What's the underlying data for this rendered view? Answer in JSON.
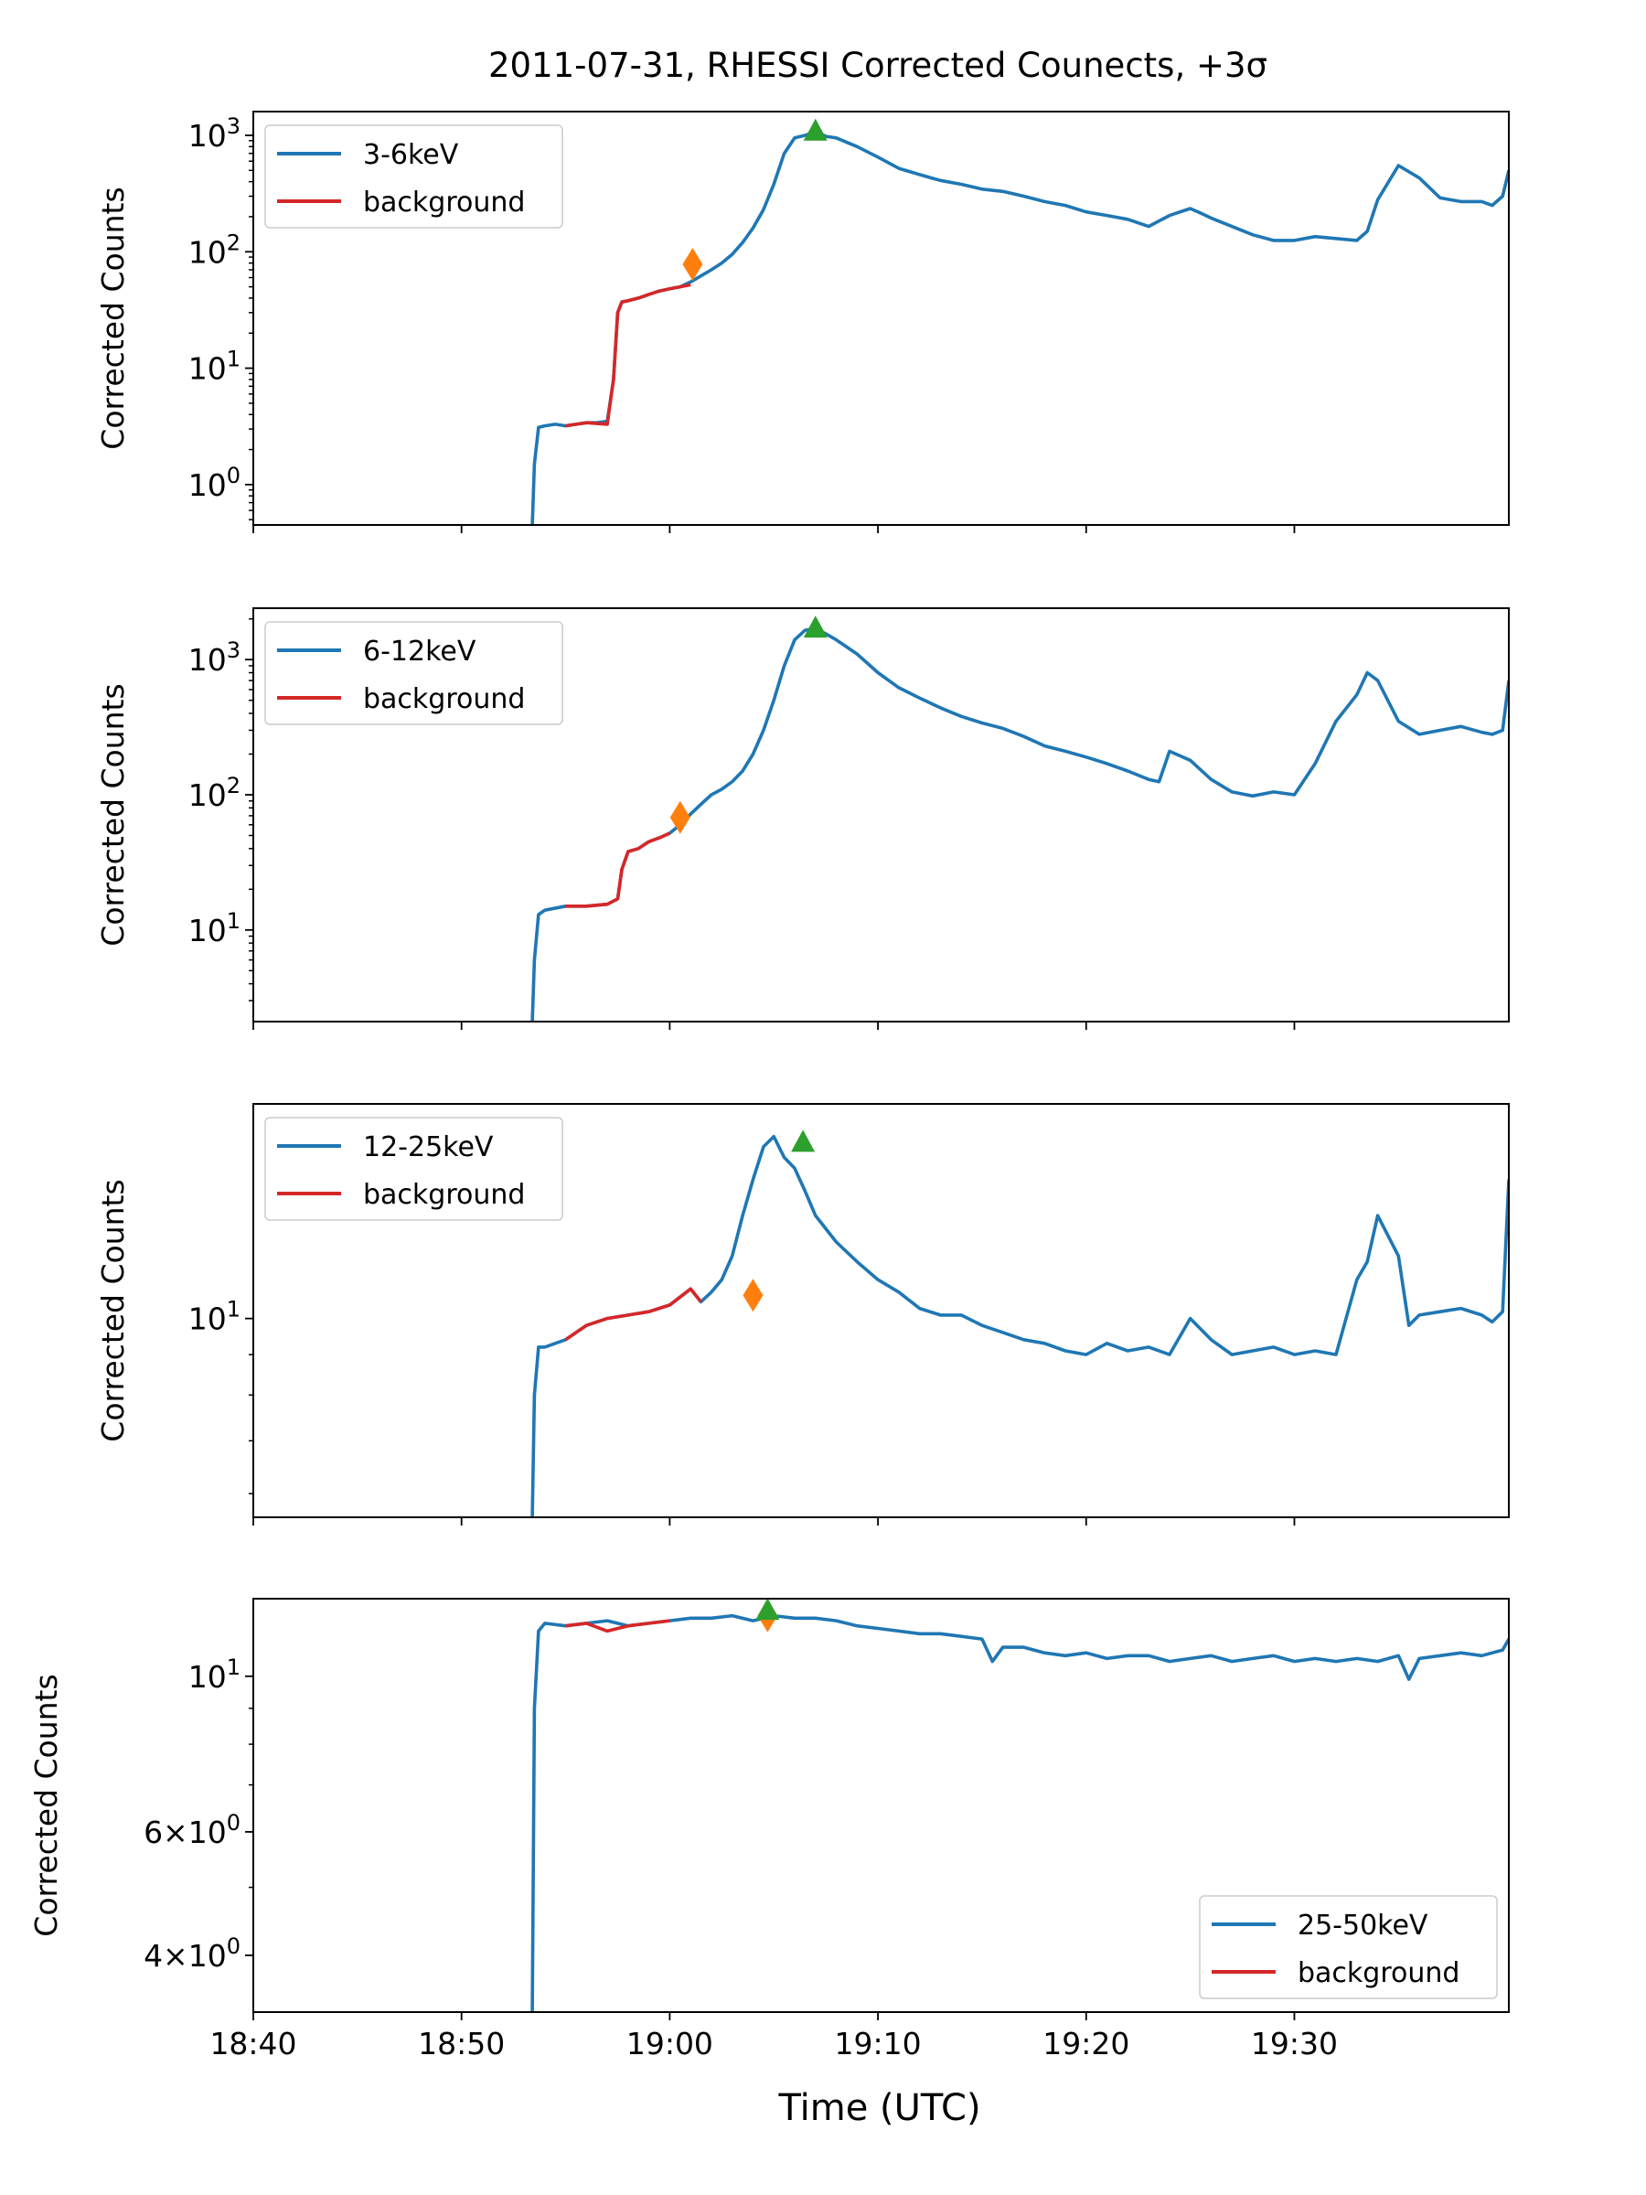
{
  "figure": {
    "title": "2011-07-31, RHESSI Corrected Counects, +3σ",
    "xlabel": "Time (UTC)",
    "xticks": [
      "18:40",
      "18:50",
      "19:00",
      "19:10",
      "19:20",
      "19:30"
    ]
  },
  "colors": {
    "signal": "#1f77b4",
    "background": "#d62728",
    "start_marker": "#ff7f0e",
    "peak_marker": "#2ca02c"
  },
  "chart_data": [
    {
      "type": "line",
      "yscale": "log",
      "ylabel": "Corrected Counts",
      "xlim": [
        0,
        60.3
      ],
      "ylim": [
        0.45,
        1600
      ],
      "yticks": [
        {
          "v": 1,
          "label": "10^0"
        },
        {
          "v": 10,
          "label": "10^1"
        },
        {
          "v": 100,
          "label": "10^2"
        },
        {
          "v": 1000,
          "label": "10^3"
        }
      ],
      "legend": {
        "position": "upper-left",
        "entries": [
          "3-6keV",
          "background"
        ]
      },
      "series": [
        {
          "name": "3-6keV",
          "x": [
            13.4,
            13.5,
            13.7,
            14,
            14.5,
            15,
            16,
            16.5,
            17,
            17.3,
            17.5,
            17.7,
            18,
            18.5,
            19,
            19.5,
            20,
            20.5,
            21,
            21.5,
            22,
            22.5,
            23,
            23.5,
            24,
            24.5,
            25,
            25.5,
            26,
            26.5,
            27,
            27.5,
            28,
            29,
            30,
            31,
            32,
            33,
            34,
            35,
            36,
            37,
            38,
            39,
            40,
            41,
            42,
            43,
            44,
            45,
            45.5,
            46,
            47,
            48,
            49,
            50,
            51,
            52,
            53,
            53.5,
            54,
            55,
            56,
            57,
            58,
            59,
            59.5,
            60,
            60.3
          ],
          "y": [
            0.45,
            1.5,
            3.1,
            3.2,
            3.3,
            3.2,
            3.4,
            3.4,
            3.5,
            8,
            30,
            37,
            38,
            40,
            43,
            46,
            48,
            50,
            55,
            62,
            70,
            80,
            95,
            120,
            160,
            230,
            380,
            700,
            950,
            1000,
            1080,
            980,
            950,
            800,
            650,
            520,
            460,
            410,
            380,
            345,
            330,
            300,
            270,
            250,
            220,
            205,
            190,
            165,
            205,
            235,
            215,
            195,
            165,
            140,
            125,
            125,
            135,
            130,
            125,
            150,
            280,
            550,
            430,
            290,
            270,
            270,
            250,
            300,
            500
          ]
        },
        {
          "name": "background",
          "x": [
            15,
            16,
            17,
            17.3,
            17.5,
            17.7,
            18,
            18.5,
            19,
            19.5,
            20,
            20.5,
            21
          ],
          "y": [
            3.2,
            3.4,
            3.3,
            8,
            30,
            37,
            38,
            40,
            43,
            46,
            48,
            50,
            52
          ]
        }
      ],
      "markers": [
        {
          "kind": "start",
          "x": 21.1,
          "y": 78
        },
        {
          "kind": "peak",
          "x": 27.0,
          "y": 1080
        }
      ]
    },
    {
      "type": "line",
      "yscale": "log",
      "ylabel": "Corrected Counts",
      "xlim": [
        0,
        60.3
      ],
      "ylim": [
        2.1,
        2400
      ],
      "yticks": [
        {
          "v": 10,
          "label": "10^1"
        },
        {
          "v": 100,
          "label": "10^2"
        },
        {
          "v": 1000,
          "label": "10^3"
        }
      ],
      "legend": {
        "position": "upper-left",
        "entries": [
          "6-12keV",
          "background"
        ]
      },
      "series": [
        {
          "name": "6-12keV",
          "x": [
            13.4,
            13.5,
            13.7,
            14,
            15,
            16,
            17,
            17.5,
            17.7,
            18,
            18.5,
            19,
            19.5,
            20,
            20.5,
            21,
            21.5,
            22,
            22.5,
            23,
            23.5,
            24,
            24.5,
            25,
            25.5,
            26,
            26.5,
            27,
            27.5,
            28,
            29,
            30,
            31,
            32,
            33,
            34,
            35,
            36,
            37,
            38,
            39,
            40,
            41,
            42,
            43,
            43.5,
            44,
            45,
            46,
            47,
            48,
            49,
            50,
            51,
            52,
            53,
            53.5,
            54,
            55,
            56,
            57,
            58,
            59,
            59.5,
            60,
            60.3
          ],
          "y": [
            2.1,
            6,
            13,
            14,
            15,
            15,
            15.5,
            17,
            28,
            38,
            40,
            45,
            48,
            52,
            60,
            72,
            85,
            100,
            110,
            125,
            150,
            200,
            300,
            500,
            900,
            1400,
            1650,
            1700,
            1550,
            1400,
            1100,
            800,
            620,
            520,
            440,
            380,
            340,
            310,
            270,
            230,
            210,
            190,
            170,
            150,
            130,
            125,
            210,
            180,
            130,
            105,
            98,
            105,
            100,
            170,
            350,
            550,
            800,
            700,
            350,
            280,
            300,
            320,
            290,
            280,
            300,
            700
          ]
        },
        {
          "name": "background",
          "x": [
            15,
            16,
            17,
            17.5,
            17.7,
            18,
            18.5,
            19,
            19.5,
            20
          ],
          "y": [
            15,
            15,
            15.5,
            17,
            28,
            38,
            40,
            45,
            48,
            52
          ]
        }
      ],
      "markers": [
        {
          "kind": "start",
          "x": 20.5,
          "y": 68
        },
        {
          "kind": "peak",
          "x": 27.0,
          "y": 1700
        }
      ]
    },
    {
      "type": "line",
      "yscale": "log",
      "ylabel": "Corrected Counts",
      "xlim": [
        0,
        60.3
      ],
      "ylim": [
        5.6,
        18.7
      ],
      "yticks": [
        {
          "v": 10,
          "label": "10^1"
        }
      ],
      "legend": {
        "position": "upper-left",
        "entries": [
          "12-25keV",
          "background"
        ]
      },
      "series": [
        {
          "name": "12-25keV",
          "x": [
            13.4,
            13.5,
            13.7,
            14,
            15,
            16,
            17,
            18,
            19,
            20,
            21,
            21.5,
            22,
            22.5,
            23,
            23.5,
            24,
            24.5,
            25,
            25.5,
            26,
            26.5,
            27,
            28,
            29,
            30,
            31,
            32,
            33,
            34,
            35,
            36,
            37,
            38,
            39,
            40,
            41,
            42,
            43,
            44,
            45,
            46,
            47,
            48,
            49,
            50,
            51,
            52,
            53,
            53.5,
            54,
            55,
            55.5,
            56,
            57,
            58,
            59,
            59.5,
            60,
            60.3
          ],
          "y": [
            5.6,
            8,
            9.2,
            9.2,
            9.4,
            9.8,
            10,
            10.1,
            10.2,
            10.4,
            10.9,
            10.5,
            10.8,
            11.2,
            12,
            13.5,
            15,
            16.5,
            17,
            16,
            15.5,
            14.5,
            13.5,
            12.5,
            11.8,
            11.2,
            10.8,
            10.3,
            10.1,
            10.1,
            9.8,
            9.6,
            9.4,
            9.3,
            9.1,
            9,
            9.3,
            9.1,
            9.2,
            9,
            10,
            9.4,
            9,
            9.1,
            9.2,
            9,
            9.1,
            9,
            11.2,
            11.8,
            13.5,
            12,
            9.8,
            10.1,
            10.2,
            10.3,
            10.1,
            9.9,
            10.2,
            15
          ]
        },
        {
          "name": "background",
          "x": [
            15,
            16,
            17,
            18,
            19,
            20,
            21,
            21.5
          ],
          "y": [
            9.4,
            9.8,
            10,
            10.1,
            10.2,
            10.4,
            10.9,
            10.5
          ]
        }
      ],
      "markers": [
        {
          "kind": "start",
          "x": 24.0,
          "y": 10.7
        },
        {
          "kind": "peak",
          "x": 26.4,
          "y": 16.7
        }
      ]
    },
    {
      "type": "line",
      "yscale": "log",
      "ylabel": "Corrected Counts",
      "xlim": [
        0,
        60.3
      ],
      "ylim": [
        3.32,
        12.9
      ],
      "yticks": [
        {
          "v": 4,
          "label": "4×10^0"
        },
        {
          "v": 6,
          "label": "6×10^0"
        },
        {
          "v": 10,
          "label": "10^1"
        }
      ],
      "legend": {
        "position": "lower-right",
        "entries": [
          "25-50keV",
          "background"
        ]
      },
      "series": [
        {
          "name": "25-50keV",
          "x": [
            13.4,
            13.5,
            13.7,
            14,
            15,
            16,
            17,
            18,
            19,
            20,
            21,
            22,
            23,
            24,
            25,
            26,
            27,
            28,
            29,
            30,
            31,
            32,
            33,
            34,
            35,
            35.5,
            36,
            37,
            38,
            39,
            40,
            41,
            42,
            43,
            44,
            45,
            46,
            47,
            48,
            49,
            50,
            51,
            52,
            53,
            54,
            55,
            55.5,
            56,
            57,
            58,
            59,
            60,
            60.3
          ],
          "y": [
            3.32,
            9,
            11.6,
            11.9,
            11.8,
            11.9,
            12,
            11.8,
            11.9,
            12,
            12.1,
            12.1,
            12.2,
            12,
            12.2,
            12.1,
            12.1,
            12,
            11.8,
            11.7,
            11.6,
            11.5,
            11.5,
            11.4,
            11.3,
            10.5,
            11,
            11,
            10.8,
            10.7,
            10.8,
            10.6,
            10.7,
            10.7,
            10.5,
            10.6,
            10.7,
            10.5,
            10.6,
            10.7,
            10.5,
            10.6,
            10.5,
            10.6,
            10.5,
            10.7,
            9.9,
            10.6,
            10.7,
            10.8,
            10.7,
            10.9,
            11.3
          ]
        },
        {
          "name": "background",
          "x": [
            15,
            16,
            17,
            18,
            19,
            20
          ],
          "y": [
            11.8,
            11.9,
            11.6,
            11.8,
            11.9,
            12
          ]
        }
      ],
      "markers": [
        {
          "kind": "start",
          "x": 24.7,
          "y": 12.2
        },
        {
          "kind": "peak",
          "x": 24.7,
          "y": 12.4
        }
      ]
    }
  ]
}
